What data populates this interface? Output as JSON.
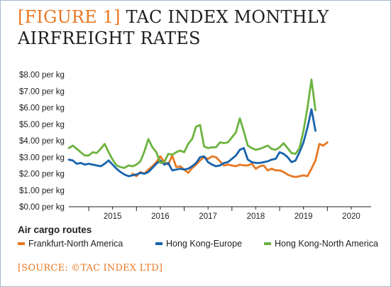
{
  "header": {
    "figure_tag": "[FIGURE 1]",
    "title": "TAC INDEX MONTHLY AIRFREIGHT RATES"
  },
  "source": "[SOURCE: ©TAC INDEX LTD]",
  "legend_title": "Air cargo routes",
  "colors": {
    "frankfurt": "#e87722",
    "hongkong_europe": "#1763ad",
    "hongkong_na": "#6db33f",
    "accent": "#e87722"
  },
  "chart_data": {
    "type": "line",
    "title": "TAC INDEX MONTHLY AIRFREIGHT RATES",
    "xlabel": "",
    "ylabel": "",
    "x_range": [
      "2014-08",
      "2020-12"
    ],
    "x_ticks": [
      "2015",
      "2016",
      "2017",
      "2018",
      "2019",
      "2020"
    ],
    "ylim": [
      0,
      8
    ],
    "y_ticks": [
      "$0.00 per kg",
      "$1.00 per kg",
      "$2.00 per kg",
      "$3.00 per kg",
      "$4.00 per kg",
      "$5.00 per kg",
      "$6.00 per kg",
      "$7.00 per kg",
      "$8.00 per kg"
    ],
    "grid": false,
    "legend_position": "bottom",
    "series": [
      {
        "name": "Frankfurt-North America",
        "color": "#e87722",
        "points": [
          [
            "2015-12",
            2.0
          ],
          [
            "2016-01",
            1.85
          ],
          [
            "2016-02",
            2.1
          ],
          [
            "2016-03",
            2.0
          ],
          [
            "2016-04",
            2.25
          ],
          [
            "2016-05",
            2.45
          ],
          [
            "2016-06",
            2.7
          ],
          [
            "2016-07",
            3.05
          ],
          [
            "2016-08",
            2.7
          ],
          [
            "2016-09",
            2.55
          ],
          [
            "2016-10",
            3.1
          ],
          [
            "2016-11",
            2.4
          ],
          [
            "2016-12",
            2.45
          ],
          [
            "2017-01",
            2.25
          ],
          [
            "2017-02",
            2.05
          ],
          [
            "2017-03",
            2.35
          ],
          [
            "2017-04",
            2.55
          ],
          [
            "2017-05",
            2.8
          ],
          [
            "2017-06",
            3.0
          ],
          [
            "2017-07",
            2.9
          ],
          [
            "2017-08",
            3.05
          ],
          [
            "2017-09",
            3.0
          ],
          [
            "2017-10",
            2.75
          ],
          [
            "2017-11",
            2.5
          ],
          [
            "2017-12",
            2.55
          ],
          [
            "2018-01",
            2.5
          ],
          [
            "2018-02",
            2.45
          ],
          [
            "2018-03",
            2.55
          ],
          [
            "2018-04",
            2.5
          ],
          [
            "2018-05",
            2.5
          ],
          [
            "2018-06",
            2.6
          ],
          [
            "2018-07",
            2.3
          ],
          [
            "2018-08",
            2.45
          ],
          [
            "2018-09",
            2.5
          ],
          [
            "2018-10",
            2.2
          ],
          [
            "2018-11",
            2.3
          ],
          [
            "2018-12",
            2.2
          ],
          [
            "2019-01",
            2.2
          ],
          [
            "2019-02",
            2.1
          ],
          [
            "2019-03",
            1.95
          ],
          [
            "2019-04",
            1.85
          ],
          [
            "2019-05",
            1.8
          ],
          [
            "2019-06",
            1.85
          ],
          [
            "2019-07",
            1.9
          ],
          [
            "2019-08",
            1.85
          ],
          [
            "2019-09",
            2.3
          ],
          [
            "2019-10",
            2.8
          ],
          [
            "2019-11",
            3.8
          ],
          [
            "2019-12",
            3.7
          ],
          [
            "2020-01",
            3.9
          ]
        ]
      },
      {
        "name": "Hong Kong-Europe",
        "color": "#1763ad",
        "points": [
          [
            "2014-08",
            2.85
          ],
          [
            "2014-09",
            2.8
          ],
          [
            "2014-10",
            2.6
          ],
          [
            "2014-11",
            2.65
          ],
          [
            "2014-12",
            2.55
          ],
          [
            "2015-01",
            2.6
          ],
          [
            "2015-02",
            2.55
          ],
          [
            "2015-03",
            2.5
          ],
          [
            "2015-04",
            2.45
          ],
          [
            "2015-05",
            2.6
          ],
          [
            "2015-06",
            2.8
          ],
          [
            "2015-07",
            2.55
          ],
          [
            "2015-08",
            2.3
          ],
          [
            "2015-09",
            2.1
          ],
          [
            "2015-10",
            1.95
          ],
          [
            "2015-11",
            1.85
          ],
          [
            "2015-12",
            1.9
          ],
          [
            "2016-01",
            1.95
          ],
          [
            "2016-02",
            2.05
          ],
          [
            "2016-03",
            2.0
          ],
          [
            "2016-04",
            2.1
          ],
          [
            "2016-05",
            2.35
          ],
          [
            "2016-06",
            2.6
          ],
          [
            "2016-07",
            2.8
          ],
          [
            "2016-08",
            2.55
          ],
          [
            "2016-09",
            2.65
          ],
          [
            "2016-10",
            2.2
          ],
          [
            "2016-11",
            2.25
          ],
          [
            "2016-12",
            2.3
          ],
          [
            "2017-01",
            2.25
          ],
          [
            "2017-02",
            2.3
          ],
          [
            "2017-03",
            2.45
          ],
          [
            "2017-04",
            2.65
          ],
          [
            "2017-05",
            3.0
          ],
          [
            "2017-06",
            3.05
          ],
          [
            "2017-07",
            2.7
          ],
          [
            "2017-08",
            2.55
          ],
          [
            "2017-09",
            2.45
          ],
          [
            "2017-10",
            2.5
          ],
          [
            "2017-11",
            2.65
          ],
          [
            "2017-12",
            2.7
          ],
          [
            "2018-01",
            2.9
          ],
          [
            "2018-02",
            3.1
          ],
          [
            "2018-03",
            3.45
          ],
          [
            "2018-04",
            3.55
          ],
          [
            "2018-05",
            2.85
          ],
          [
            "2018-06",
            2.7
          ],
          [
            "2018-07",
            2.65
          ],
          [
            "2018-08",
            2.65
          ],
          [
            "2018-09",
            2.7
          ],
          [
            "2018-10",
            2.75
          ],
          [
            "2018-11",
            2.85
          ],
          [
            "2018-12",
            2.9
          ],
          [
            "2019-01",
            3.3
          ],
          [
            "2019-02",
            3.2
          ],
          [
            "2019-03",
            3.0
          ],
          [
            "2019-04",
            2.7
          ],
          [
            "2019-05",
            2.8
          ],
          [
            "2019-06",
            3.3
          ],
          [
            "2019-07",
            3.9
          ],
          [
            "2019-08",
            4.8
          ],
          [
            "2019-09",
            5.9
          ],
          [
            "2019-10",
            4.6
          ]
        ]
      },
      {
        "name": "Hong Kong-North America",
        "color": "#6db33f",
        "points": [
          [
            "2014-08",
            3.55
          ],
          [
            "2014-09",
            3.7
          ],
          [
            "2014-10",
            3.5
          ],
          [
            "2014-11",
            3.3
          ],
          [
            "2014-12",
            3.1
          ],
          [
            "2015-01",
            3.1
          ],
          [
            "2015-02",
            3.3
          ],
          [
            "2015-03",
            3.25
          ],
          [
            "2015-04",
            3.5
          ],
          [
            "2015-05",
            3.8
          ],
          [
            "2015-06",
            3.3
          ],
          [
            "2015-07",
            2.85
          ],
          [
            "2015-08",
            2.5
          ],
          [
            "2015-09",
            2.4
          ],
          [
            "2015-10",
            2.35
          ],
          [
            "2015-11",
            2.5
          ],
          [
            "2015-12",
            2.45
          ],
          [
            "2016-01",
            2.55
          ],
          [
            "2016-02",
            2.75
          ],
          [
            "2016-03",
            3.35
          ],
          [
            "2016-04",
            4.1
          ],
          [
            "2016-05",
            3.6
          ],
          [
            "2016-06",
            3.3
          ],
          [
            "2016-07",
            2.65
          ],
          [
            "2016-08",
            2.7
          ],
          [
            "2016-09",
            3.2
          ],
          [
            "2016-10",
            3.15
          ],
          [
            "2016-11",
            3.3
          ],
          [
            "2016-12",
            3.4
          ],
          [
            "2017-01",
            3.3
          ],
          [
            "2017-02",
            3.8
          ],
          [
            "2017-03",
            4.1
          ],
          [
            "2017-04",
            4.85
          ],
          [
            "2017-05",
            4.95
          ],
          [
            "2017-06",
            3.65
          ],
          [
            "2017-07",
            3.55
          ],
          [
            "2017-08",
            3.6
          ],
          [
            "2017-09",
            3.6
          ],
          [
            "2017-10",
            3.9
          ],
          [
            "2017-11",
            3.85
          ],
          [
            "2017-12",
            3.9
          ],
          [
            "2018-01",
            4.2
          ],
          [
            "2018-02",
            4.5
          ],
          [
            "2018-03",
            5.35
          ],
          [
            "2018-04",
            4.55
          ],
          [
            "2018-05",
            3.7
          ],
          [
            "2018-06",
            3.55
          ],
          [
            "2018-07",
            3.45
          ],
          [
            "2018-08",
            3.5
          ],
          [
            "2018-09",
            3.6
          ],
          [
            "2018-10",
            3.7
          ],
          [
            "2018-11",
            3.5
          ],
          [
            "2018-12",
            3.45
          ],
          [
            "2019-01",
            3.6
          ],
          [
            "2019-02",
            3.85
          ],
          [
            "2019-03",
            3.55
          ],
          [
            "2019-04",
            3.25
          ],
          [
            "2019-05",
            3.2
          ],
          [
            "2019-06",
            3.55
          ],
          [
            "2019-07",
            4.6
          ],
          [
            "2019-08",
            6.0
          ],
          [
            "2019-09",
            7.7
          ],
          [
            "2019-10",
            5.85
          ]
        ]
      }
    ]
  }
}
